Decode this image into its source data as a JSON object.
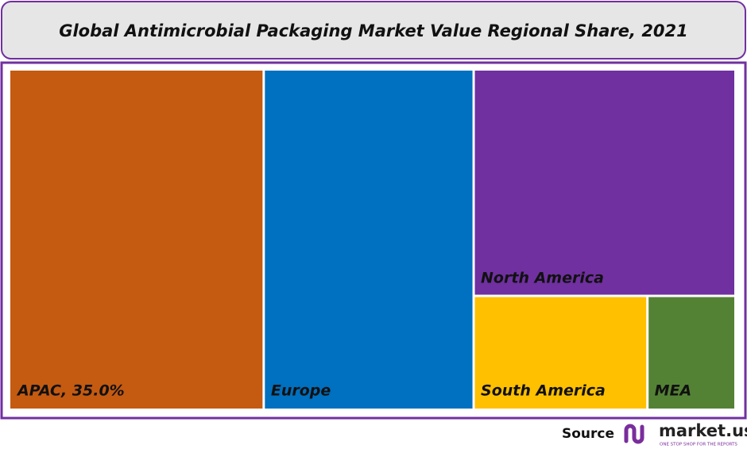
{
  "chart_data": {
    "type": "treemap",
    "title": "Global Antimicrobial Packaging Market Value Regional Share, 2021",
    "labels": [
      "APAC, 35.0%",
      "Europe",
      "North America",
      "South America",
      "MEA"
    ],
    "values": [
      35.0,
      29.0,
      24.0,
      8.0,
      4.0
    ],
    "colors": [
      "#c55a11",
      "#0070c0",
      "#7030a0",
      "#ffc000",
      "#548235"
    ]
  },
  "source": "Source",
  "brand": "market.us",
  "tagline": "ONE STOP SHOP FOR THE REPORTS"
}
